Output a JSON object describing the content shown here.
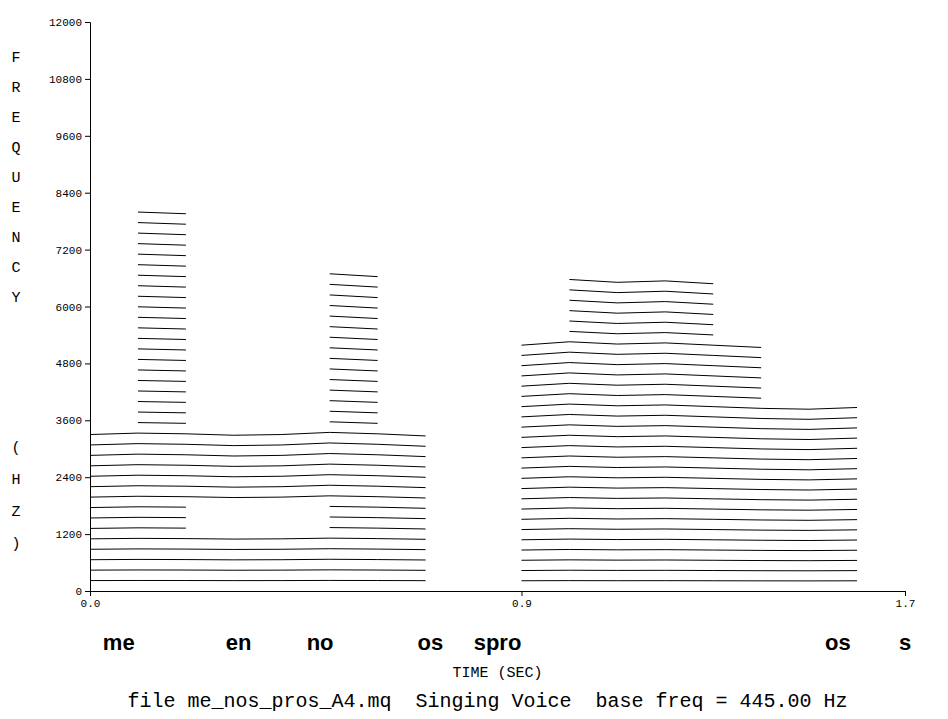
{
  "chart_data": {
    "type": "line",
    "caption": "file me_nos_pros_A4.mq  Singing Voice  base freq = 445.00 Hz",
    "x_label": "TIME (SEC)",
    "y_label": "FREQUENCY (HZ)",
    "color": "#000000",
    "xlim": [
      0,
      1.7
    ],
    "xticks": [
      {
        "value": 0,
        "label": "0.0"
      },
      0.9,
      1.7
    ],
    "ylim": [
      0,
      12000
    ],
    "yticks": [
      0,
      1200,
      2400,
      3600,
      4800,
      6000,
      7200,
      8400,
      9600,
      10800,
      12000
    ],
    "grid": false,
    "annotations": [
      {
        "text": "me",
        "x": 0.06
      },
      {
        "text": "en",
        "x": 0.31
      },
      {
        "text": "no",
        "x": 0.48
      },
      {
        "text": "os",
        "x": 0.71
      },
      {
        "text": "spro",
        "x": 0.85
      },
      {
        "text": "os",
        "x": 1.56
      },
      {
        "text": "s",
        "x": 1.7
      }
    ],
    "x": [
      0,
      0.1,
      0.2,
      0.3,
      0.4,
      0.5,
      0.6,
      0.7,
      0.8,
      0.9,
      1.0,
      1.1,
      1.2,
      1.3,
      1.4,
      1.5,
      1.6,
      1.7
    ],
    "series": [
      {
        "values": [
          220,
          222,
          221,
          219,
          220,
          223,
          221,
          218,
          null,
          216,
          219,
          217,
          218,
          216,
          214,
          213,
          215,
          null
        ]
      },
      {
        "values": [
          440,
          444,
          442,
          438,
          440,
          446,
          442,
          436,
          null,
          432,
          438,
          434,
          436,
          432,
          428,
          426,
          430,
          null
        ]
      },
      {
        "values": [
          660,
          666,
          663,
          657,
          660,
          669,
          663,
          654,
          null,
          648,
          657,
          651,
          654,
          648,
          642,
          639,
          645,
          null
        ]
      },
      {
        "values": [
          880,
          888,
          884,
          876,
          880,
          892,
          884,
          872,
          null,
          864,
          876,
          868,
          872,
          864,
          856,
          852,
          860,
          null
        ]
      },
      {
        "values": [
          1100,
          1110,
          1105,
          1095,
          1100,
          1115,
          1105,
          1090,
          null,
          1080,
          1095,
          1085,
          1090,
          1080,
          1070,
          1065,
          1075,
          null
        ]
      },
      {
        "values": [
          1320,
          1332,
          1326,
          null,
          null,
          1338,
          1326,
          1308,
          null,
          1296,
          1314,
          1302,
          1308,
          1296,
          1284,
          1278,
          1290,
          null
        ]
      },
      {
        "values": [
          1540,
          1554,
          1547,
          null,
          null,
          1561,
          1547,
          1526,
          null,
          1512,
          1533,
          1519,
          1526,
          1512,
          1498,
          1491,
          1505,
          null
        ]
      },
      {
        "values": [
          1760,
          1776,
          1768,
          null,
          null,
          1784,
          1768,
          1744,
          null,
          1728,
          1752,
          1736,
          1744,
          1728,
          1712,
          1704,
          1720,
          null
        ]
      },
      {
        "values": [
          1980,
          1998,
          1989,
          1971,
          1980,
          2007,
          1989,
          1962,
          null,
          1944,
          1971,
          1953,
          1962,
          1944,
          1926,
          1917,
          1935,
          null
        ]
      },
      {
        "values": [
          2200,
          2220,
          2210,
          2190,
          2200,
          2230,
          2210,
          2180,
          null,
          2160,
          2190,
          2170,
          2180,
          2160,
          2140,
          2130,
          2150,
          null
        ]
      },
      {
        "values": [
          2420,
          2442,
          2431,
          2409,
          2420,
          2453,
          2431,
          2398,
          null,
          2376,
          2409,
          2387,
          2398,
          2376,
          2354,
          2343,
          2365,
          null
        ]
      },
      {
        "values": [
          2640,
          2664,
          2652,
          2628,
          2640,
          2676,
          2652,
          2616,
          null,
          2592,
          2628,
          2604,
          2616,
          2592,
          2568,
          2556,
          2580,
          null
        ]
      },
      {
        "values": [
          2860,
          2886,
          2873,
          2847,
          2860,
          2899,
          2873,
          2834,
          null,
          2808,
          2847,
          2821,
          2834,
          2808,
          2782,
          2769,
          2795,
          null
        ]
      },
      {
        "values": [
          3080,
          3108,
          3094,
          3066,
          3080,
          3122,
          3094,
          3052,
          null,
          3024,
          3066,
          3038,
          3052,
          3024,
          2996,
          2982,
          3010,
          null
        ]
      },
      {
        "values": [
          3300,
          3330,
          3315,
          3285,
          3300,
          3345,
          3315,
          3270,
          null,
          3240,
          3285,
          3255,
          3270,
          3240,
          3210,
          3195,
          3225,
          null
        ]
      },
      {
        "values": [
          null,
          3552,
          3536,
          null,
          null,
          3568,
          3536,
          null,
          null,
          3456,
          3504,
          3472,
          3488,
          3456,
          3424,
          3408,
          3440,
          null
        ]
      },
      {
        "values": [
          null,
          3774,
          3757,
          null,
          null,
          3791,
          3757,
          null,
          null,
          3672,
          3723,
          3689,
          3706,
          3672,
          3638,
          3621,
          3655,
          null
        ]
      },
      {
        "values": [
          null,
          3996,
          3978,
          null,
          null,
          4014,
          3978,
          null,
          null,
          3888,
          3942,
          3906,
          3924,
          3888,
          3852,
          3834,
          3870,
          null
        ]
      },
      {
        "values": [
          null,
          4218,
          4199,
          null,
          null,
          4237,
          4199,
          null,
          null,
          4104,
          4161,
          4123,
          4142,
          4104,
          4066,
          null,
          null,
          null
        ]
      },
      {
        "values": [
          null,
          4440,
          4420,
          null,
          null,
          4460,
          4420,
          null,
          null,
          4320,
          4380,
          4340,
          4360,
          4320,
          4280,
          null,
          null,
          null
        ]
      },
      {
        "values": [
          null,
          4662,
          4641,
          null,
          null,
          4683,
          4641,
          null,
          null,
          4536,
          4599,
          4557,
          4578,
          4536,
          4494,
          null,
          null,
          null
        ]
      },
      {
        "values": [
          null,
          4884,
          4862,
          null,
          null,
          4906,
          4862,
          null,
          null,
          4752,
          4818,
          4774,
          4796,
          4752,
          4708,
          null,
          null,
          null
        ]
      },
      {
        "values": [
          null,
          5106,
          5083,
          null,
          null,
          5129,
          5083,
          null,
          null,
          4968,
          5037,
          4991,
          5014,
          4968,
          4922,
          null,
          null,
          null
        ]
      },
      {
        "values": [
          null,
          5328,
          5304,
          null,
          null,
          5352,
          5304,
          null,
          null,
          5184,
          5256,
          5208,
          5232,
          5184,
          5136,
          null,
          null,
          null
        ]
      },
      {
        "values": [
          null,
          5550,
          5525,
          null,
          null,
          5575,
          5525,
          null,
          null,
          null,
          5475,
          5425,
          5450,
          5400,
          null,
          null,
          null,
          null
        ]
      },
      {
        "values": [
          null,
          5772,
          5746,
          null,
          null,
          5798,
          5746,
          null,
          null,
          null,
          5694,
          5642,
          5668,
          5616,
          null,
          null,
          null,
          null
        ]
      },
      {
        "values": [
          null,
          5994,
          5967,
          null,
          null,
          6021,
          5967,
          null,
          null,
          null,
          5913,
          5859,
          5886,
          5832,
          null,
          null,
          null,
          null
        ]
      },
      {
        "values": [
          null,
          6216,
          6188,
          null,
          null,
          6244,
          6188,
          null,
          null,
          null,
          6132,
          6076,
          6104,
          6048,
          null,
          null,
          null,
          null
        ]
      },
      {
        "values": [
          null,
          6438,
          6409,
          null,
          null,
          6467,
          6409,
          null,
          null,
          null,
          6351,
          6293,
          6322,
          6264,
          null,
          null,
          null,
          null
        ]
      },
      {
        "values": [
          null,
          6660,
          6630,
          null,
          null,
          6690,
          6630,
          null,
          null,
          null,
          6570,
          6510,
          6540,
          6480,
          null,
          null,
          null,
          null
        ]
      },
      {
        "values": [
          null,
          6882,
          6851,
          null,
          null,
          null,
          null,
          null,
          null,
          null,
          null,
          null,
          null,
          null,
          null,
          null,
          null,
          null
        ]
      },
      {
        "values": [
          null,
          7104,
          7072,
          null,
          null,
          null,
          null,
          null,
          null,
          null,
          null,
          null,
          null,
          null,
          null,
          null,
          null,
          null
        ]
      },
      {
        "values": [
          null,
          7326,
          7293,
          null,
          null,
          null,
          null,
          null,
          null,
          null,
          null,
          null,
          null,
          null,
          null,
          null,
          null,
          null
        ]
      },
      {
        "values": [
          null,
          7548,
          7514,
          null,
          null,
          null,
          null,
          null,
          null,
          null,
          null,
          null,
          null,
          null,
          null,
          null,
          null,
          null
        ]
      },
      {
        "values": [
          null,
          7770,
          7735,
          null,
          null,
          null,
          null,
          null,
          null,
          null,
          null,
          null,
          null,
          null,
          null,
          null,
          null,
          null
        ]
      },
      {
        "values": [
          null,
          7992,
          7956,
          null,
          null,
          null,
          null,
          null,
          null,
          null,
          null,
          null,
          null,
          null,
          null,
          null,
          null,
          null
        ]
      }
    ]
  }
}
